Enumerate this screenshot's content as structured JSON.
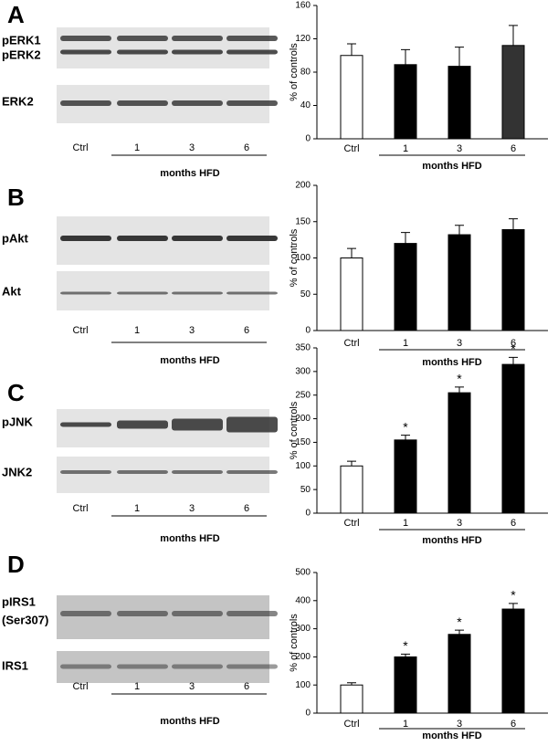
{
  "chart_data": [
    {
      "type": "bar",
      "ylabel": "% of controls",
      "categories": [
        "Ctrl",
        "1",
        "3",
        "6"
      ],
      "group_label": "months HFD",
      "values": [
        100,
        89,
        87,
        112
      ],
      "errors": [
        14,
        18,
        23,
        24
      ],
      "colors": [
        "#ffffff",
        "#000000",
        "#000000",
        "#333333"
      ],
      "ylim": [
        0,
        160
      ],
      "yticks": [
        0,
        40,
        80,
        120,
        160
      ]
    },
    {
      "type": "bar",
      "ylabel": "% of controls",
      "categories": [
        "Ctrl",
        "1",
        "3",
        "6"
      ],
      "group_label": "months HFD",
      "values": [
        100,
        120,
        132,
        139
      ],
      "errors": [
        13,
        15,
        13,
        15
      ],
      "colors": [
        "#ffffff",
        "#000000",
        "#000000",
        "#000000"
      ],
      "ylim": [
        0,
        200
      ],
      "yticks": [
        0,
        50,
        100,
        150,
        200
      ]
    },
    {
      "type": "bar",
      "ylabel": "% of controls",
      "categories": [
        "Ctrl",
        "1",
        "3",
        "6"
      ],
      "group_label": "months HFD",
      "values": [
        100,
        155,
        255,
        315
      ],
      "errors": [
        10,
        10,
        12,
        15
      ],
      "colors": [
        "#ffffff",
        "#000000",
        "#000000",
        "#000000"
      ],
      "significance": [
        null,
        "*",
        "*",
        "*"
      ],
      "ylim": [
        0,
        350
      ],
      "yticks": [
        0,
        50,
        100,
        150,
        200,
        250,
        300,
        350
      ]
    },
    {
      "type": "bar",
      "ylabel": "% of controls",
      "categories": [
        "Ctrl",
        "1",
        "3",
        "6"
      ],
      "group_label": "months HFD",
      "values": [
        100,
        200,
        280,
        370
      ],
      "errors": [
        8,
        10,
        15,
        20
      ],
      "colors": [
        "#ffffff",
        "#000000",
        "#000000",
        "#000000"
      ],
      "significance": [
        null,
        "*",
        "*",
        "*"
      ],
      "ylim": [
        0,
        500
      ],
      "yticks": [
        0,
        100,
        200,
        300,
        400,
        500
      ]
    }
  ],
  "blots": [
    {
      "letter": "A",
      "rows": [
        "pERK1",
        "pERK2",
        "ERK2"
      ],
      "lanes": [
        "Ctrl",
        "1",
        "3",
        "6"
      ],
      "group": "months HFD"
    },
    {
      "letter": "B",
      "rows": [
        "pAkt",
        "Akt"
      ],
      "lanes": [
        "Ctrl",
        "1",
        "3",
        "6"
      ],
      "group": "months HFD"
    },
    {
      "letter": "C",
      "rows": [
        "pJNK",
        "JNK2"
      ],
      "lanes": [
        "Ctrl",
        "1",
        "3",
        "6"
      ],
      "group": "months HFD"
    },
    {
      "letter": "D",
      "rows": [
        "pIRS1",
        "(Ser307)",
        "IRS1"
      ],
      "lanes": [
        "Ctrl",
        "1",
        "3",
        "6"
      ],
      "group": "months HFD"
    }
  ]
}
